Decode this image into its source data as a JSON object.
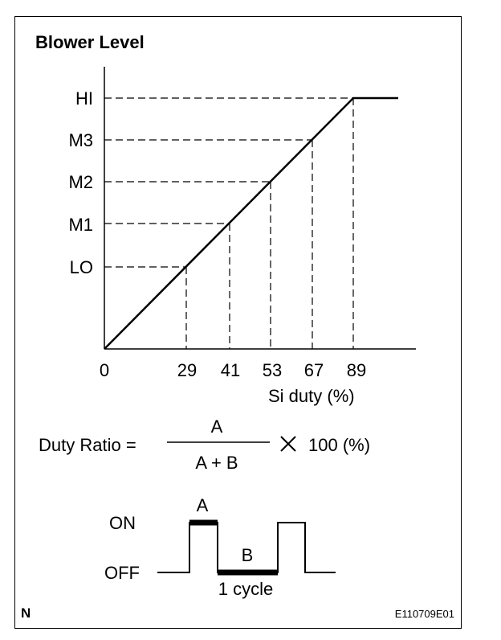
{
  "title": "Blower Level",
  "y_levels": [
    "LO",
    "M1",
    "M2",
    "M3",
    "HI"
  ],
  "x_origin": "0",
  "x_ticks": [
    "29",
    "41",
    "53",
    "67",
    "89"
  ],
  "x_unit_label": "Si duty (%)",
  "formula": {
    "lhs": "Duty Ratio =",
    "numerator": "A",
    "denominator": "A + B",
    "times_symbol": "✕",
    "rhs": "100 (%)"
  },
  "waveform": {
    "on_label": "ON",
    "off_label": "OFF",
    "a_label": "A",
    "b_label": "B",
    "cycle_label": "1 cycle"
  },
  "corner_letter": "N",
  "figure_code": "E110709E01",
  "chart_data": {
    "type": "line",
    "xlabel": "Si duty (%)",
    "ylabel": "",
    "title": "Blower Level",
    "categories": [
      "LO",
      "M1",
      "M2",
      "M3",
      "HI"
    ],
    "x": [
      29,
      41,
      53,
      67,
      89
    ],
    "grid": false
  }
}
